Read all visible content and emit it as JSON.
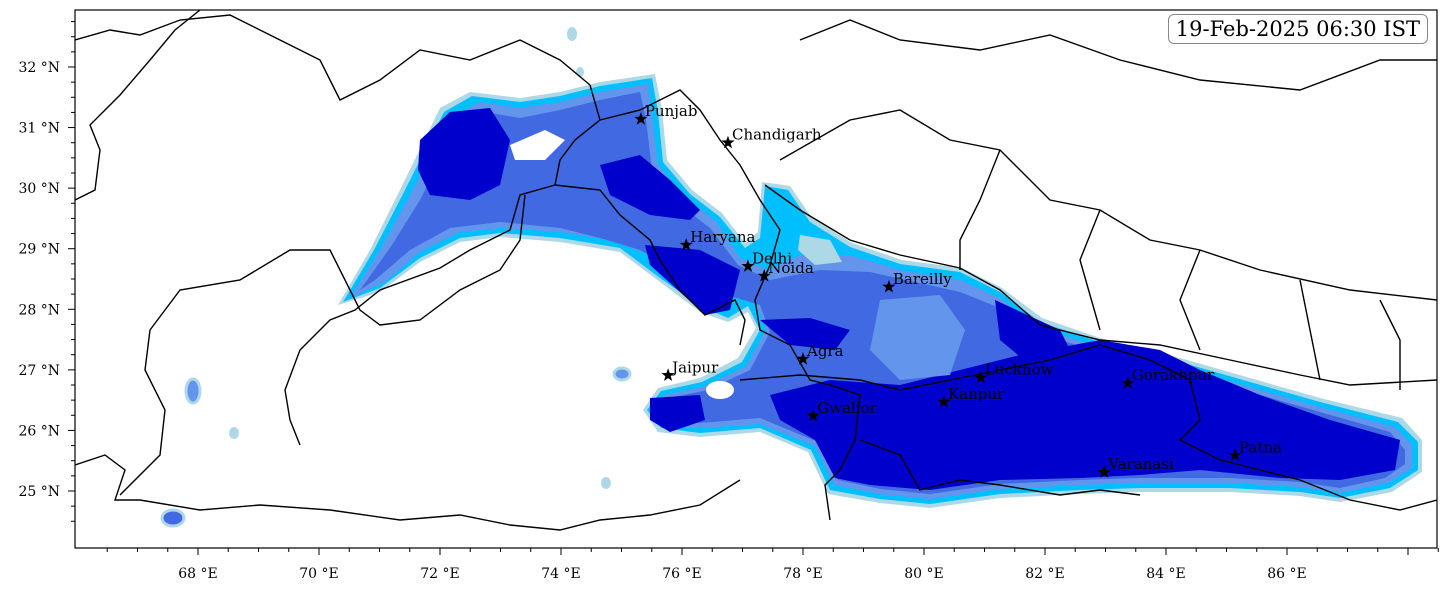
{
  "timestamp": "19-Feb-2025 06:30 IST",
  "map": {
    "extent": {
      "lon": [
        66,
        88.5
      ],
      "lat": [
        24.05,
        32.95
      ]
    },
    "lon_ticks": [
      68,
      70,
      72,
      74,
      76,
      78,
      80,
      82,
      84,
      86
    ],
    "lat_ticks": [
      25,
      26,
      27,
      28,
      29,
      30,
      31,
      32
    ],
    "lon_suffix": "°E",
    "lat_suffix": "°N",
    "fill_colors": [
      "#add8e6",
      "#00bfff",
      "#6495ed",
      "#4169e1",
      "#0000cd"
    ],
    "border_color": "#000000"
  },
  "cities": [
    {
      "name": "Punjab",
      "lon": 75.32,
      "lat": 31.14
    },
    {
      "name": "Chandigarh",
      "lon": 76.76,
      "lat": 30.75
    },
    {
      "name": "Haryana",
      "lon": 76.07,
      "lat": 29.06
    },
    {
      "name": "Delhi",
      "lon": 77.09,
      "lat": 28.71
    },
    {
      "name": "Noida",
      "lon": 77.36,
      "lat": 28.55
    },
    {
      "name": "Bareilly",
      "lon": 79.42,
      "lat": 28.37
    },
    {
      "name": "Agra",
      "lon": 78.0,
      "lat": 27.18
    },
    {
      "name": "Jaipur",
      "lon": 75.77,
      "lat": 26.91
    },
    {
      "name": "Lucknow",
      "lon": 80.94,
      "lat": 26.87
    },
    {
      "name": "Gorakhpur",
      "lon": 83.37,
      "lat": 26.78
    },
    {
      "name": "Gwalior",
      "lon": 78.17,
      "lat": 26.24
    },
    {
      "name": "Kanpur",
      "lon": 80.33,
      "lat": 26.47
    },
    {
      "name": "Patna",
      "lon": 85.14,
      "lat": 25.59
    },
    {
      "name": "Varanasi",
      "lon": 82.98,
      "lat": 25.31
    }
  ]
}
